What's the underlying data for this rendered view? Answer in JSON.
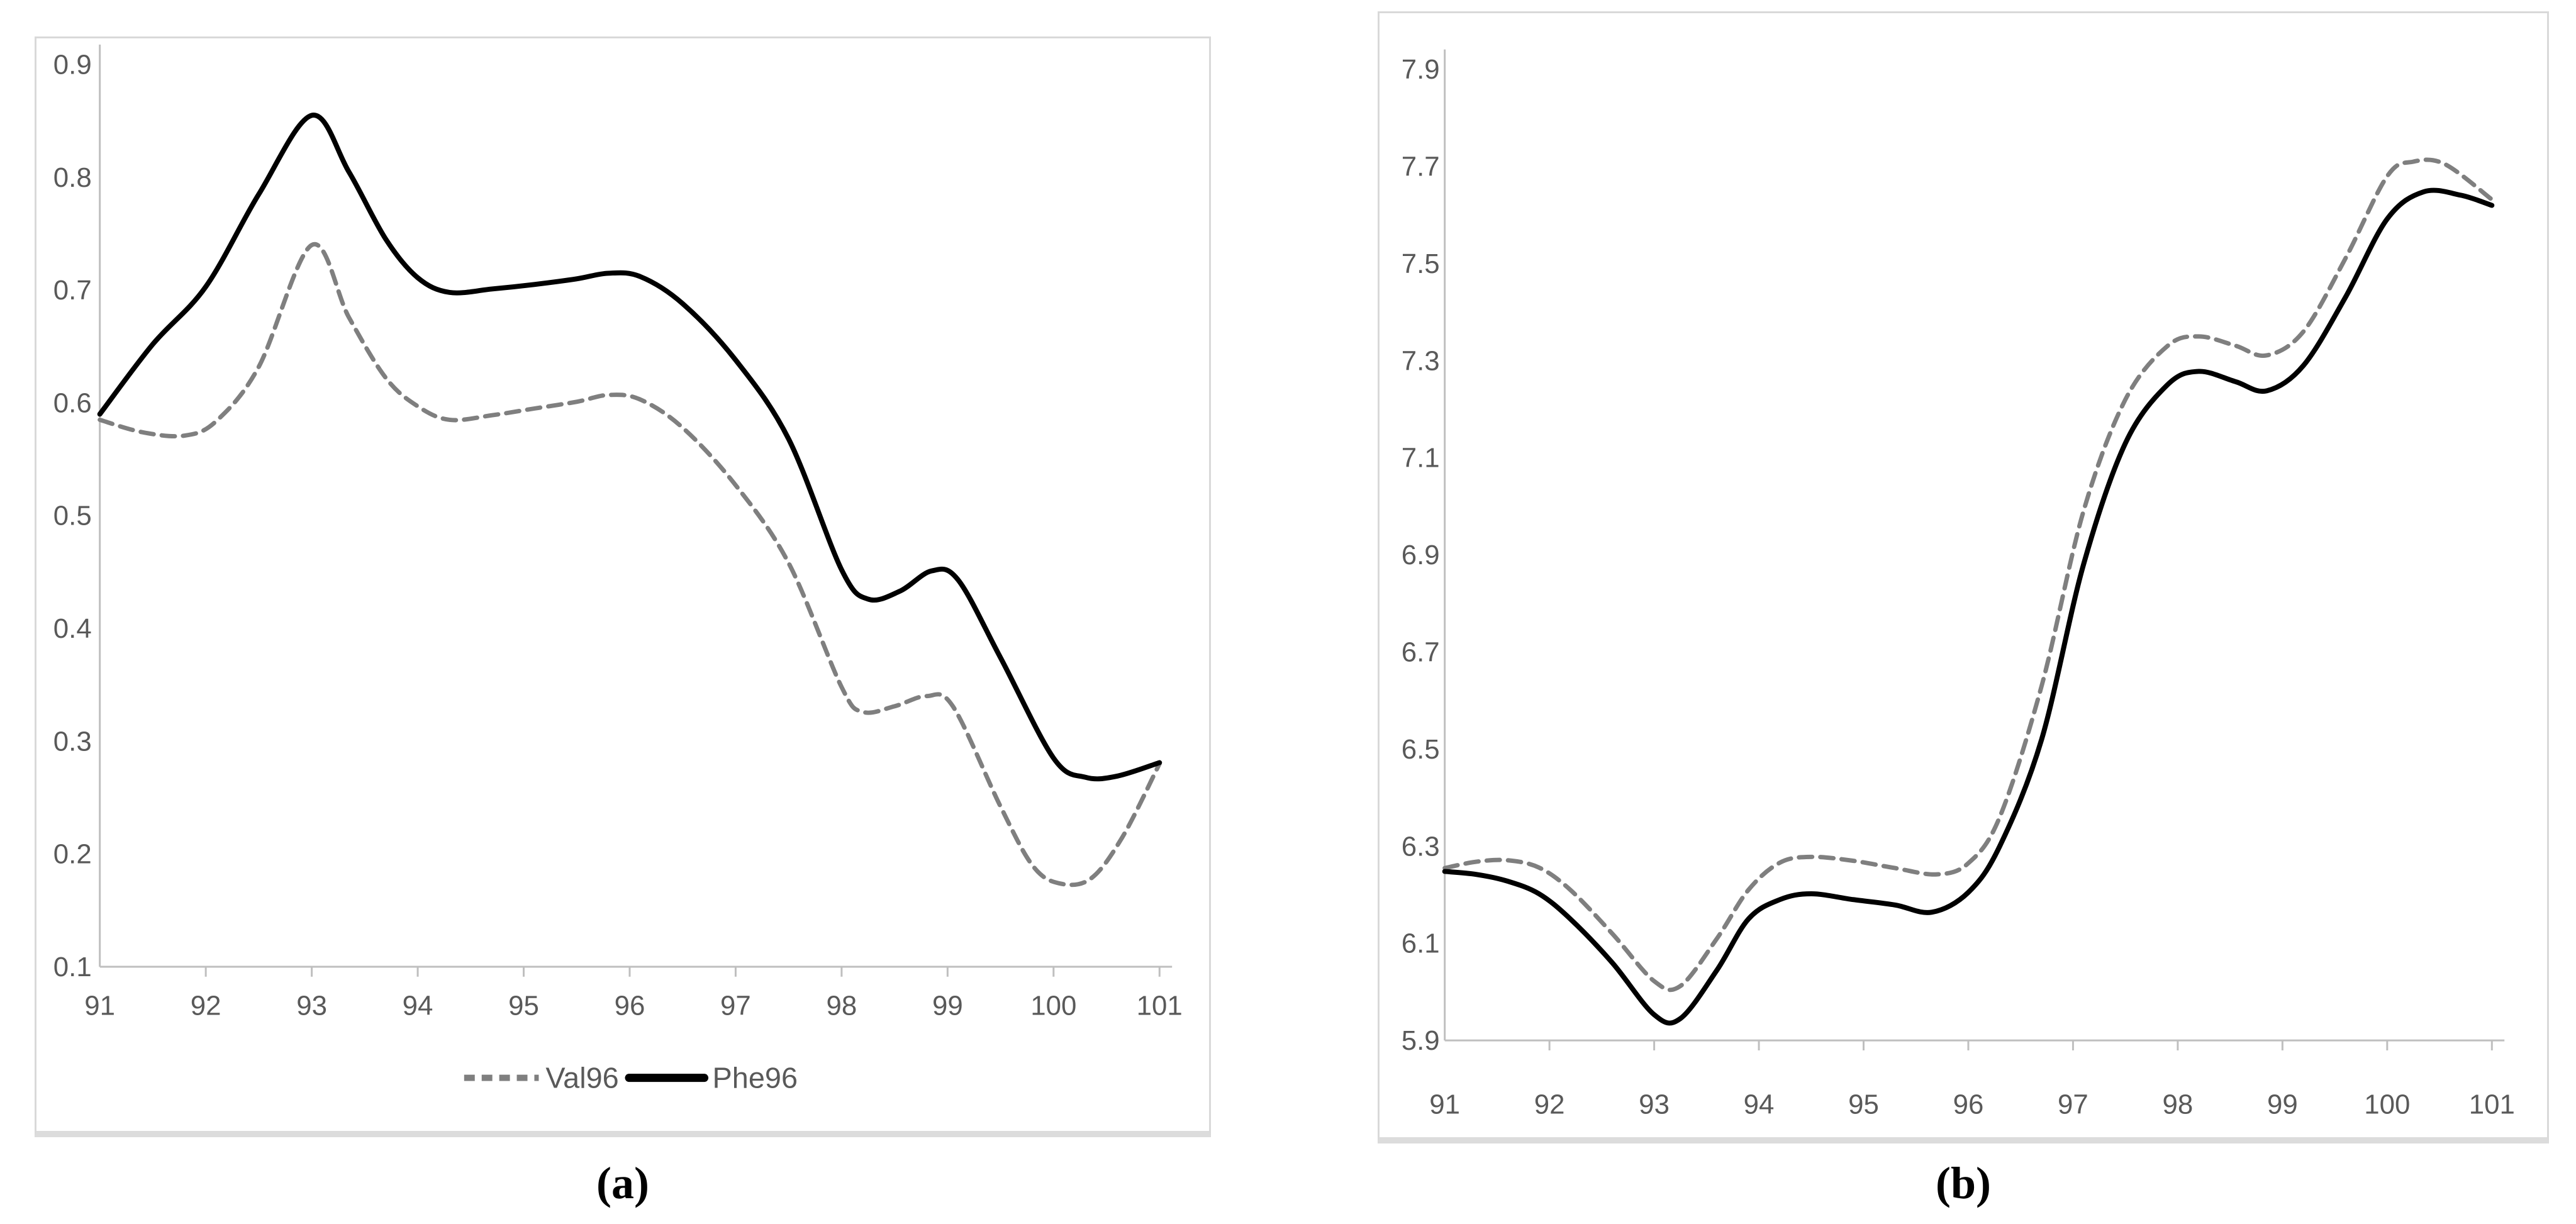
{
  "figure": {
    "caption_a": "(a)",
    "caption_b": "(b)"
  },
  "styles": {
    "axis_color": "#bfbfbf",
    "tick_label_color": "#595959",
    "dashed_series_color": "#7f7f7f",
    "solid_series_color": "#000000",
    "panel_border_color": "#d9d9d9"
  },
  "chart_data": [
    {
      "id": "a",
      "type": "line",
      "caption": "(a)",
      "title": "",
      "xlabel": "",
      "ylabel": "",
      "xlim": [
        91,
        101
      ],
      "ylim": [
        0.1,
        0.9
      ],
      "grid": false,
      "x_tick_labels": [
        "91",
        "92",
        "93",
        "94",
        "95",
        "96",
        "97",
        "98",
        "99",
        "100",
        "101"
      ],
      "y_tick_labels": [
        "0.9",
        "0.8",
        "0.7",
        "0.6",
        "0.5",
        "0.4",
        "0.3",
        "0.2",
        "0.1"
      ],
      "legend": {
        "position": "bottom",
        "entries": [
          {
            "label": "Val96",
            "line_style": "dashed",
            "color": "#7f7f7f"
          },
          {
            "label": "Phe96",
            "line_style": "solid",
            "color": "#000000"
          }
        ]
      },
      "series": [
        {
          "name": "Val96",
          "line_style": "dashed",
          "color": "#7f7f7f",
          "points": [
            [
              91,
              0.585
            ],
            [
              91.4,
              0.574
            ],
            [
              91.8,
              0.571
            ],
            [
              92.1,
              0.584
            ],
            [
              92.5,
              0.632
            ],
            [
              93,
              0.74
            ],
            [
              93.35,
              0.676
            ],
            [
              93.7,
              0.622
            ],
            [
              94,
              0.597
            ],
            [
              94.3,
              0.585
            ],
            [
              94.7,
              0.589
            ],
            [
              95.1,
              0.595
            ],
            [
              95.5,
              0.601
            ],
            [
              95.8,
              0.607
            ],
            [
              96.1,
              0.603
            ],
            [
              96.5,
              0.578
            ],
            [
              97,
              0.527
            ],
            [
              97.5,
              0.458
            ],
            [
              98,
              0.348
            ],
            [
              98.2,
              0.326
            ],
            [
              98.5,
              0.331
            ],
            [
              98.8,
              0.34
            ],
            [
              99.05,
              0.331
            ],
            [
              99.5,
              0.242
            ],
            [
              99.8,
              0.19
            ],
            [
              100.05,
              0.174
            ],
            [
              100.35,
              0.178
            ],
            [
              100.65,
              0.215
            ],
            [
              101,
              0.28
            ]
          ]
        },
        {
          "name": "Phe96",
          "line_style": "solid",
          "color": "#000000",
          "points": [
            [
              91,
              0.59
            ],
            [
              91.5,
              0.652
            ],
            [
              92,
              0.703
            ],
            [
              92.5,
              0.785
            ],
            [
              93,
              0.855
            ],
            [
              93.35,
              0.805
            ],
            [
              93.7,
              0.745
            ],
            [
              94,
              0.711
            ],
            [
              94.3,
              0.698
            ],
            [
              94.7,
              0.701
            ],
            [
              95.1,
              0.705
            ],
            [
              95.5,
              0.71
            ],
            [
              95.8,
              0.715
            ],
            [
              96.1,
              0.712
            ],
            [
              96.5,
              0.688
            ],
            [
              97,
              0.638
            ],
            [
              97.5,
              0.568
            ],
            [
              98,
              0.452
            ],
            [
              98.25,
              0.426
            ],
            [
              98.55,
              0.433
            ],
            [
              98.85,
              0.451
            ],
            [
              99.1,
              0.443
            ],
            [
              99.5,
              0.374
            ],
            [
              100,
              0.285
            ],
            [
              100.3,
              0.268
            ],
            [
              100.6,
              0.269
            ],
            [
              101,
              0.281
            ]
          ]
        }
      ]
    },
    {
      "id": "b",
      "type": "line",
      "caption": "(b)",
      "title": "",
      "xlabel": "",
      "ylabel": "",
      "xlim": [
        91,
        101
      ],
      "ylim": [
        5.9,
        7.9
      ],
      "grid": false,
      "x_tick_labels": [
        "91",
        "92",
        "93",
        "94",
        "95",
        "96",
        "97",
        "98",
        "99",
        "100",
        "101"
      ],
      "y_tick_labels": [
        "7.9",
        "7.7",
        "7.5",
        "7.3",
        "7.1",
        "6.9",
        "6.7",
        "6.5",
        "6.3",
        "6.1",
        "5.9"
      ],
      "legend": null,
      "series": [
        {
          "name": "",
          "line_style": "dashed",
          "color": "#7f7f7f",
          "points": [
            [
              91,
              6.255
            ],
            [
              91.3,
              6.268
            ],
            [
              91.6,
              6.271
            ],
            [
              91.9,
              6.256
            ],
            [
              92.2,
              6.21
            ],
            [
              92.6,
              6.12
            ],
            [
              93,
              6.022
            ],
            [
              93.25,
              6.012
            ],
            [
              93.6,
              6.11
            ],
            [
              93.9,
              6.21
            ],
            [
              94.2,
              6.266
            ],
            [
              94.5,
              6.278
            ],
            [
              94.9,
              6.27
            ],
            [
              95.3,
              6.255
            ],
            [
              95.7,
              6.242
            ],
            [
              96,
              6.265
            ],
            [
              96.3,
              6.36
            ],
            [
              96.7,
              6.63
            ],
            [
              97.1,
              6.99
            ],
            [
              97.5,
              7.22
            ],
            [
              97.9,
              7.33
            ],
            [
              98.2,
              7.35
            ],
            [
              98.55,
              7.331
            ],
            [
              98.85,
              7.311
            ],
            [
              99.2,
              7.36
            ],
            [
              99.6,
              7.51
            ],
            [
              100,
              7.68
            ],
            [
              100.25,
              7.71
            ],
            [
              100.55,
              7.705
            ],
            [
              101,
              7.632
            ]
          ]
        },
        {
          "name": "",
          "line_style": "solid",
          "color": "#000000",
          "points": [
            [
              91,
              6.248
            ],
            [
              91.3,
              6.242
            ],
            [
              91.6,
              6.228
            ],
            [
              91.9,
              6.202
            ],
            [
              92.2,
              6.15
            ],
            [
              92.6,
              6.06
            ],
            [
              93,
              5.953
            ],
            [
              93.25,
              5.945
            ],
            [
              93.6,
              6.045
            ],
            [
              93.9,
              6.15
            ],
            [
              94.2,
              6.19
            ],
            [
              94.5,
              6.202
            ],
            [
              94.9,
              6.19
            ],
            [
              95.3,
              6.179
            ],
            [
              95.65,
              6.164
            ],
            [
              96,
              6.205
            ],
            [
              96.3,
              6.3
            ],
            [
              96.7,
              6.52
            ],
            [
              97.1,
              6.88
            ],
            [
              97.5,
              7.13
            ],
            [
              97.9,
              7.25
            ],
            [
              98.2,
              7.278
            ],
            [
              98.55,
              7.257
            ],
            [
              98.85,
              7.238
            ],
            [
              99.2,
              7.29
            ],
            [
              99.6,
              7.43
            ],
            [
              100,
              7.592
            ],
            [
              100.35,
              7.648
            ],
            [
              100.7,
              7.641
            ],
            [
              101,
              7.62
            ]
          ]
        }
      ]
    }
  ]
}
